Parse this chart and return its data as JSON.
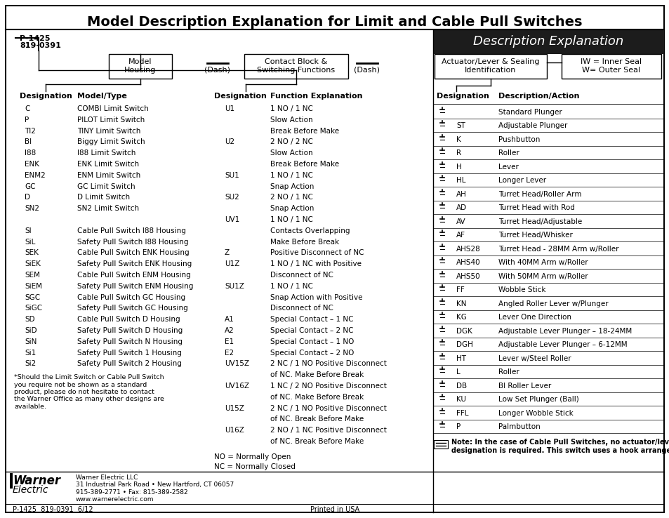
{
  "title": "Model Description Explanation for Limit and Cable Pull Switches",
  "desc_explanation_label": "Description Explanation",
  "part_numbers": [
    "P-1425",
    "819-0391"
  ],
  "left_table_data": [
    [
      "C",
      "COMBI Limit Switch"
    ],
    [
      "P",
      "PILOT Limit Switch"
    ],
    [
      "TI2",
      "TINY Limit Switch"
    ],
    [
      "BI",
      "Biggy Limit Switch"
    ],
    [
      "I88",
      "I88 Limit Switch"
    ],
    [
      "ENK",
      "ENK Limit Switch"
    ],
    [
      "ENM2",
      "ENM Limit Switch"
    ],
    [
      "GC",
      "GC Limit Switch"
    ],
    [
      "D",
      "D Limit Switch"
    ],
    [
      "SN2",
      "SN2 Limit Switch"
    ],
    [
      "",
      ""
    ],
    [
      "SI",
      "Cable Pull Switch I88 Housing"
    ],
    [
      "SiL",
      "Safety Pull Switch I88 Housing"
    ],
    [
      "SEK",
      "Cable Pull Switch ENK Housing"
    ],
    [
      "SiEK",
      "Safety Pull Switch ENK Housing"
    ],
    [
      "SEM",
      "Cable Pull Switch ENM Housing"
    ],
    [
      "SiEM",
      "Safety Pull Switch ENM Housing"
    ],
    [
      "SGC",
      "Cable Pull Switch GC Housing"
    ],
    [
      "SiGC",
      "Safety Pull Switch GC Housing"
    ],
    [
      "SD",
      "Cable Pull Switch D Housing"
    ],
    [
      "SiD",
      "Safety Pull Switch D Housing"
    ],
    [
      "SiN",
      "Safety Pull Switch N Housing"
    ],
    [
      "Si1",
      "Safety Pull Switch 1 Housing"
    ],
    [
      "Si2",
      "Safety Pull Switch 2 Housing"
    ]
  ],
  "footnote": "*Should the Limit Switch or Cable Pull Switch\nyou require not be shown as a standard\nproduct, please do not hesitate to contact\nthe Warner Office as many other designs are\navailable.",
  "middle_table_data": [
    [
      "U1",
      "1 NO / 1 NC"
    ],
    [
      "",
      "Slow Action"
    ],
    [
      "",
      "Break Before Make"
    ],
    [
      "U2",
      "2 NO / 2 NC"
    ],
    [
      "",
      "Slow Action"
    ],
    [
      "",
      "Break Before Make"
    ],
    [
      "SU1",
      "1 NO / 1 NC"
    ],
    [
      "",
      "Snap Action"
    ],
    [
      "SU2",
      "2 NO / 1 NC"
    ],
    [
      "",
      "Snap Action"
    ],
    [
      "UV1",
      "1 NO / 1 NC"
    ],
    [
      "",
      "Contacts Overlapping"
    ],
    [
      "",
      "Make Before Break"
    ],
    [
      "Z",
      "Positive Disconnect of NC"
    ],
    [
      "U1Z",
      "1 NO / 1 NC with Positive"
    ],
    [
      "",
      "Disconnect of NC"
    ],
    [
      "SU1Z",
      "1 NO / 1 NC"
    ],
    [
      "",
      "Snap Action with Positive"
    ],
    [
      "",
      "Disconnect of NC"
    ],
    [
      "A1",
      "Special Contact – 1 NC"
    ],
    [
      "A2",
      "Special Contact – 2 NC"
    ],
    [
      "E1",
      "Special Contact – 1 NO"
    ],
    [
      "E2",
      "Special Contact – 2 NO"
    ],
    [
      "UV15Z",
      "2 NC / 1 NO Positive Disconnect"
    ],
    [
      "",
      "of NC. Make Before Break"
    ],
    [
      "UV16Z",
      "1 NC / 2 NO Positive Disconnect"
    ],
    [
      "",
      "of NC. Make Before Break"
    ],
    [
      "U15Z",
      "2 NC / 1 NO Positive Disconnect"
    ],
    [
      "",
      "of NC. Break Before Make"
    ],
    [
      "U16Z",
      "2 NO / 1 NC Positive Disconnect"
    ],
    [
      "",
      "of NC. Break Before Make"
    ]
  ],
  "legend_items": [
    "NO = Normally Open",
    "NC = Normally Closed"
  ],
  "right_table_data": [
    [
      "",
      "Standard Plunger"
    ],
    [
      "ST",
      "Adjustable Plunger"
    ],
    [
      "K",
      "Pushbutton"
    ],
    [
      "R",
      "Roller"
    ],
    [
      "H",
      "Lever"
    ],
    [
      "HL",
      "Longer Lever"
    ],
    [
      "AH",
      "Turret Head/Roller Arm"
    ],
    [
      "AD",
      "Turret Head with Rod"
    ],
    [
      "AV",
      "Turret Head/Adjustable"
    ],
    [
      "AF",
      "Turret Head/Whisker"
    ],
    [
      "AHS28",
      "Turret Head - 28MM Arm w/Roller"
    ],
    [
      "AHS40",
      "With 40MM Arm w/Roller"
    ],
    [
      "AHS50",
      "With 50MM Arm w/Roller"
    ],
    [
      "FF",
      "Wobble Stick"
    ],
    [
      "KN",
      "Angled Roller Lever w/Plunger"
    ],
    [
      "KG",
      "Lever One Direction"
    ],
    [
      "DGK",
      "Adjustable Lever Plunger – 18-24MM"
    ],
    [
      "DGH",
      "Adjustable Lever Plunger – 6-12MM"
    ],
    [
      "HT",
      "Lever w/Steel Roller"
    ],
    [
      "L",
      "Roller"
    ],
    [
      "DB",
      "BI Roller Lever"
    ],
    [
      "KU",
      "Low Set Plunger (Ball)"
    ],
    [
      "FFL",
      "Longer Wobble Stick"
    ],
    [
      "P",
      "Palmbutton"
    ]
  ],
  "cable_note": "Note: In the case of Cable Pull Switches, no actuator/lever\ndesignation is required. This switch uses a hook arrangement.",
  "footer_left": "P-1425  819-0391  6/12",
  "footer_center": "Printed in USA",
  "footer_company": "Warner Electric LLC\n31 Industrial Park Road • New Hartford, CT 06057\n915-389-2771 • Fax: 815-389-2582\nwww.warnerelectric.com",
  "bg_color": "#ffffff",
  "header_bg": "#1c1c1c",
  "header_text_color": "#ffffff",
  "border_color": "#000000"
}
